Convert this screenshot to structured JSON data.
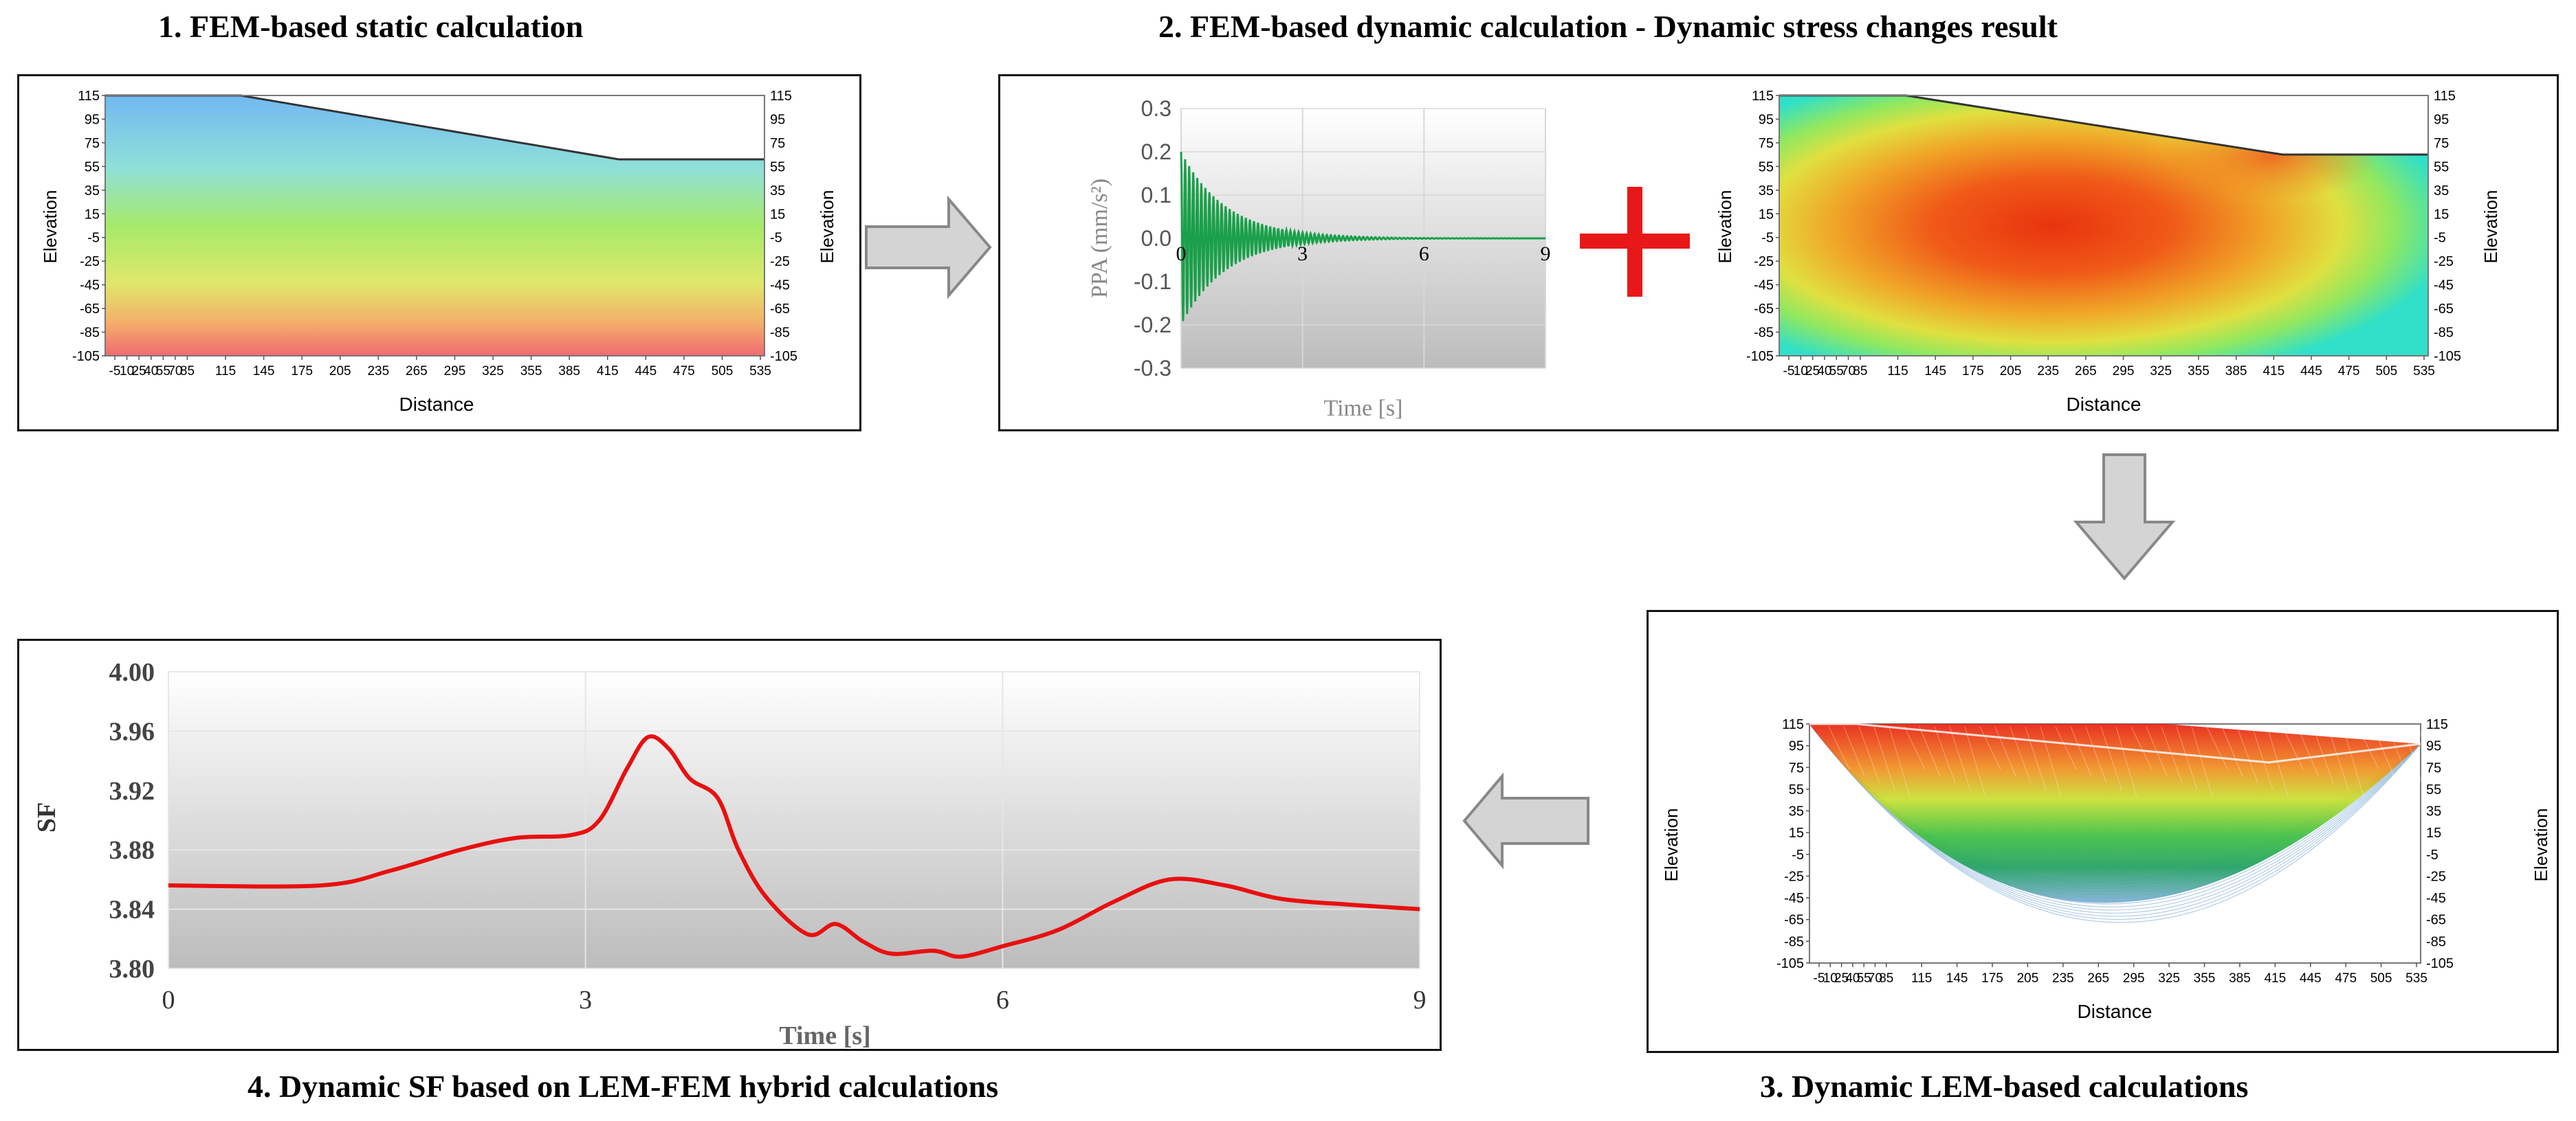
{
  "titles": {
    "p1": "1. FEM-based static calculation",
    "p2": "2. FEM-based dynamic calculation - Dynamic stress changes result",
    "p3": "3. Dynamic LEM-based calculations",
    "p4": "4. Dynamic SF based on LEM-FEM hybrid calculations"
  },
  "fem_axes": {
    "ylabel": "Elevation",
    "xlabel": "Distance",
    "yticks": [
      "115",
      "95",
      "75",
      "55",
      "35",
      "15",
      "-5",
      "-25",
      "-45",
      "-65",
      "-85",
      "-105"
    ],
    "xticks": [
      "-5",
      "10",
      "25",
      "40",
      "55",
      "70",
      "85",
      "115",
      "145",
      "175",
      "205",
      "235",
      "265",
      "295",
      "325",
      "355",
      "385",
      "415",
      "445",
      "475",
      "505",
      "535"
    ],
    "xticks_compact": "-5 10254055 7085"
  },
  "colors": {
    "grad_top": "#6fb8f0",
    "grad_mid": "#9be06a",
    "grad_bottom": "#f06a6a",
    "stress_hot": "#e83a10",
    "stress_cool": "#30e0c0",
    "wave": "#1aa04a",
    "sf_line": "#e81010",
    "plus": "#e81818",
    "arrow_fill": "#d4d4d4",
    "arrow_stroke": "#888888"
  },
  "chart_data": [
    {
      "type": "line",
      "title": "",
      "xlabel": "Time [s]",
      "ylabel": "PPA (mm/s²)",
      "xlim": [
        0,
        9
      ],
      "ylim": [
        -0.3,
        0.3
      ],
      "xticks": [
        "0",
        "3",
        "6",
        "9"
      ],
      "yticks": [
        "0.3",
        "0.2",
        "0.1",
        "0.0",
        "-0.1",
        "-0.2",
        "-0.3"
      ],
      "series": [
        {
          "name": "PPA",
          "description": "decaying oscillation",
          "amplitude0": 0.2,
          "decay": 0.9,
          "frequency_hz": 10
        }
      ]
    },
    {
      "type": "line",
      "title": "",
      "xlabel": "Time [s]",
      "ylabel": "SF",
      "xlim": [
        0,
        9
      ],
      "ylim": [
        3.8,
        4.0
      ],
      "xticks": [
        "0",
        "3",
        "6",
        "9"
      ],
      "yticks": [
        "4.00",
        "3.96",
        "3.92",
        "3.88",
        "3.84",
        "3.80"
      ],
      "series": [
        {
          "name": "SF",
          "x": [
            0,
            1.1,
            1.6,
            2.1,
            2.5,
            2.9,
            3.1,
            3.3,
            3.45,
            3.6,
            3.75,
            3.95,
            4.1,
            4.3,
            4.6,
            4.8,
            5.0,
            5.2,
            5.5,
            5.7,
            6.0,
            6.4,
            6.8,
            7.2,
            7.6,
            8.0,
            8.5,
            9.0
          ],
          "y": [
            3.856,
            3.856,
            3.866,
            3.88,
            3.888,
            3.89,
            3.9,
            3.935,
            3.956,
            3.948,
            3.928,
            3.915,
            3.88,
            3.848,
            3.823,
            3.83,
            3.818,
            3.81,
            3.812,
            3.808,
            3.815,
            3.826,
            3.845,
            3.86,
            3.856,
            3.847,
            3.843,
            3.84
          ]
        }
      ]
    }
  ]
}
